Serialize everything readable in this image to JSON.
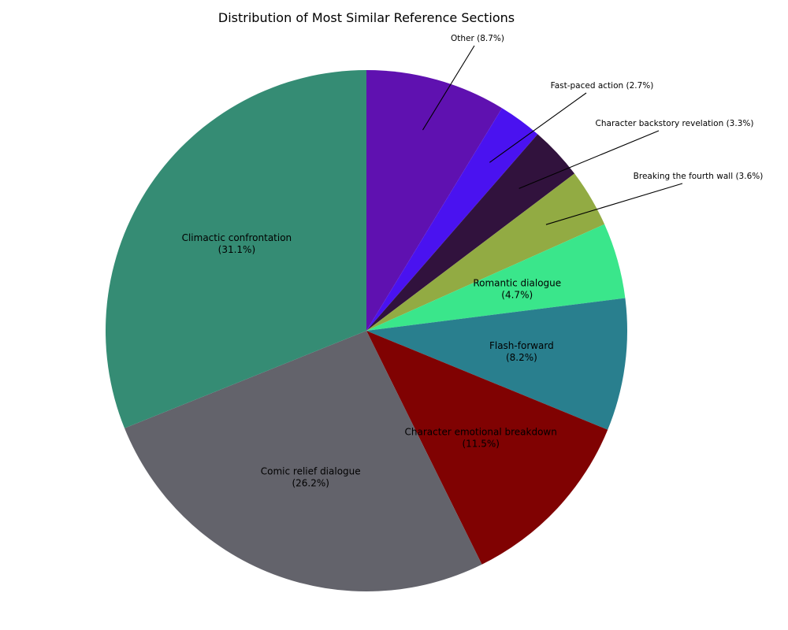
{
  "chart_data": {
    "type": "pie",
    "title": "Distribution of Most Similar Reference Sections",
    "start_angle_deg": 90,
    "direction": "clockwise",
    "slices": [
      {
        "label": "Other",
        "value": 8.7,
        "pct_text": "8.7%",
        "color": "#5f11b0",
        "label_style": "outside"
      },
      {
        "label": "Fast-paced action",
        "value": 2.7,
        "pct_text": "2.7%",
        "color": "#4a12f0",
        "label_style": "outside"
      },
      {
        "label": "Character backstory revelation",
        "value": 3.3,
        "pct_text": "3.3%",
        "color": "#31123d",
        "label_style": "outside"
      },
      {
        "label": "Breaking the fourth wall",
        "value": 3.6,
        "pct_text": "3.6%",
        "color": "#92ab43",
        "label_style": "outside"
      },
      {
        "label": "Romantic dialogue",
        "value": 4.7,
        "pct_text": "4.7%",
        "color": "#3ae68b",
        "label_style": "inside"
      },
      {
        "label": "Flash-forward",
        "value": 8.2,
        "pct_text": "8.2%",
        "color": "#297f8e",
        "label_style": "inside"
      },
      {
        "label": "Character emotional breakdown",
        "value": 11.5,
        "pct_text": "11.5%",
        "color": "#800202",
        "label_style": "inside"
      },
      {
        "label": "Comic relief dialogue",
        "value": 26.2,
        "pct_text": "26.2%",
        "color": "#63636b",
        "label_style": "inside"
      },
      {
        "label": "Climactic confrontation",
        "value": 31.1,
        "pct_text": "31.1%",
        "color": "#358c74",
        "label_style": "inside"
      }
    ]
  }
}
